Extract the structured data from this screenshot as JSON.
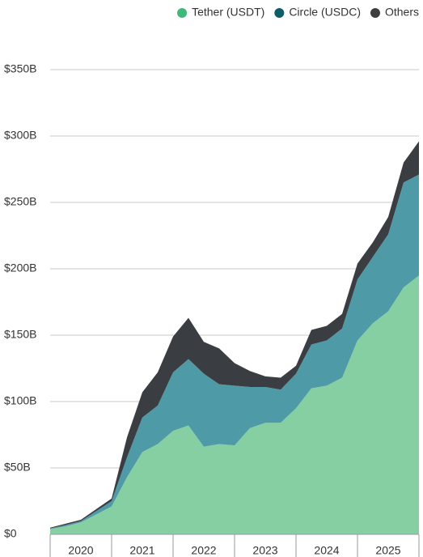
{
  "chart_data": {
    "type": "stacked_area",
    "x": [
      2020,
      2020.25,
      2020.5,
      2020.75,
      2021,
      2021.25,
      2021.5,
      2021.75,
      2022,
      2022.25,
      2022.5,
      2022.75,
      2023,
      2023.25,
      2023.5,
      2023.75,
      2024,
      2024.25,
      2024.5,
      2024.75,
      2025,
      2025.25,
      2025.5,
      2025.75,
      2026
    ],
    "series": [
      {
        "name": "Tether (USDT)",
        "color": "#3dba7a",
        "fill": "#86cfa3",
        "values": [
          4,
          6,
          9,
          15,
          21,
          43,
          62,
          68,
          78,
          82,
          66,
          68,
          67,
          80,
          84,
          84,
          95,
          110,
          112,
          118,
          146,
          159,
          168,
          186,
          195
        ]
      },
      {
        "name": "Circle (USDC)",
        "color": "#0f5e66",
        "fill": "#4e9aa6",
        "values": [
          0.5,
          1,
          1,
          2.5,
          4,
          15,
          26,
          29,
          44,
          50,
          55,
          45,
          45,
          31,
          27,
          25,
          26,
          33,
          34,
          37,
          46,
          50,
          58,
          79,
          76
        ]
      },
      {
        "name": "Others",
        "color": "#3c3f42",
        "fill": "#3a3e42",
        "values": [
          0.5,
          1,
          1,
          1.5,
          2,
          15,
          19,
          25,
          27,
          31,
          24,
          27,
          17,
          12,
          8,
          9,
          6,
          11,
          11,
          11,
          12,
          11,
          13,
          15,
          25
        ]
      }
    ],
    "xlim": [
      2020,
      2026
    ],
    "xticks": [
      {
        "value": 2020.5,
        "label": "2020"
      },
      {
        "value": 2021.5,
        "label": "2021"
      },
      {
        "value": 2022.5,
        "label": "2022"
      },
      {
        "value": 2023.5,
        "label": "2023"
      },
      {
        "value": 2024.5,
        "label": "2024"
      },
      {
        "value": 2025.5,
        "label": "2025"
      }
    ],
    "ylim": [
      0,
      350
    ],
    "yticks": [
      {
        "value": 0,
        "label": "$0"
      },
      {
        "value": 50,
        "label": "$50B"
      },
      {
        "value": 100,
        "label": "$100B"
      },
      {
        "value": 150,
        "label": "$150B"
      },
      {
        "value": 200,
        "label": "$200B"
      },
      {
        "value": 250,
        "label": "$250B"
      },
      {
        "value": 300,
        "label": "$300B"
      },
      {
        "value": 350,
        "label": "$350B"
      }
    ],
    "grid": true,
    "legend": "top-right"
  }
}
